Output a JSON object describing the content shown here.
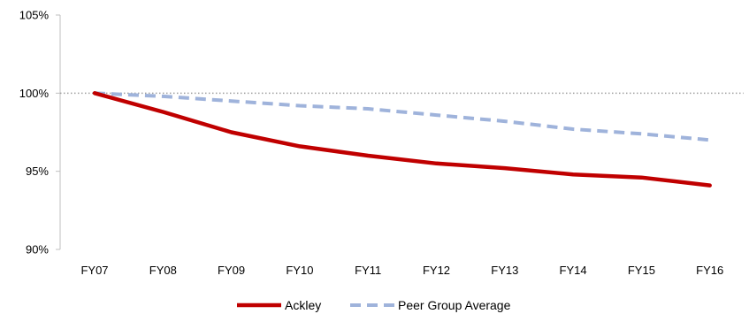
{
  "chart_data": {
    "type": "line",
    "categories": [
      "FY07",
      "FY08",
      "FY09",
      "FY10",
      "FY11",
      "FY12",
      "FY13",
      "FY14",
      "FY15",
      "FY16"
    ],
    "series": [
      {
        "name": "Ackley",
        "values": [
          100.0,
          98.8,
          97.5,
          96.6,
          96.0,
          95.5,
          95.2,
          94.8,
          94.6,
          94.1
        ],
        "color": "#c00000",
        "style": "solid"
      },
      {
        "name": "Peer Group Average",
        "values": [
          100.0,
          99.8,
          99.5,
          99.2,
          99.0,
          98.6,
          98.2,
          97.7,
          97.4,
          97.0
        ],
        "color": "#9fb3db",
        "style": "dashed"
      }
    ],
    "ylim": [
      90,
      105
    ],
    "y_ticks": [
      90,
      95,
      100,
      105
    ],
    "y_tick_labels": [
      "90%",
      "95%",
      "100%",
      "105%"
    ],
    "reference_line": 100,
    "reference_line_color": "#a0a0a0",
    "axis_color": "#bfbfbf",
    "grid": false,
    "legend_position": "bottom",
    "title": "",
    "xlabel": "",
    "ylabel": ""
  }
}
